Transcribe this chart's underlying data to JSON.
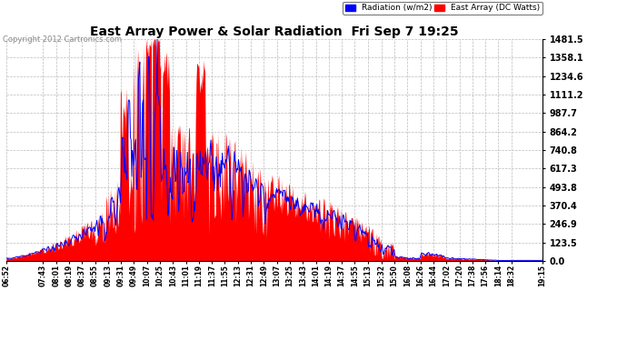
{
  "title": "East Array Power & Solar Radiation  Fri Sep 7 19:25",
  "copyright": "Copyright 2012 Cartronics.com",
  "yticks": [
    0.0,
    123.5,
    246.9,
    370.4,
    493.8,
    617.3,
    740.8,
    864.2,
    987.7,
    1111.2,
    1234.6,
    1358.1,
    1481.5
  ],
  "ymax": 1481.5,
  "ymin": 0.0,
  "background_color": "#ffffff",
  "plot_bg_color": "#ffffff",
  "grid_color": "#bbbbbb",
  "radiation_color": "#0000ff",
  "array_color": "#ff0000",
  "legend_radiation_label": "Radiation (w/m2)",
  "legend_array_label": "East Array (DC Watts)",
  "xtick_labels": [
    "06:52",
    "07:43",
    "08:01",
    "08:19",
    "08:37",
    "08:55",
    "09:13",
    "09:31",
    "09:49",
    "10:07",
    "10:25",
    "10:43",
    "11:01",
    "11:19",
    "11:37",
    "11:55",
    "12:13",
    "12:31",
    "12:49",
    "13:07",
    "13:25",
    "13:43",
    "14:01",
    "14:19",
    "14:37",
    "14:55",
    "15:13",
    "15:32",
    "15:50",
    "16:08",
    "16:26",
    "16:44",
    "17:02",
    "17:20",
    "17:38",
    "17:56",
    "18:14",
    "18:32",
    "19:15"
  ]
}
